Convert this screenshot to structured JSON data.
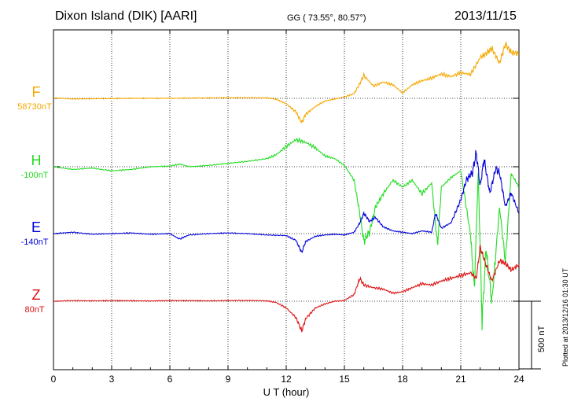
{
  "header": {
    "station": "Dixon Island (DIK)  [AARI]",
    "coords": "GG ( 73.55°,  80.57°)",
    "date": "2013/11/15"
  },
  "footer": {
    "plotted": "Plotted at 2013/12/16 01:30 UT"
  },
  "chart_data": {
    "type": "line",
    "title": "",
    "xlabel": "U T (hour)",
    "ylabel": "",
    "xlim": [
      0,
      24
    ],
    "xticks": [
      0,
      3,
      6,
      9,
      12,
      15,
      18,
      21,
      24
    ],
    "grid": true,
    "scale_bar_nT": 500,
    "scale_label": "500 nT",
    "series": [
      {
        "name": "F",
        "baseline_label": "58730nT",
        "color": "#f5a800",
        "x": [
          0,
          1,
          2,
          3,
          4,
          5,
          6,
          7,
          8,
          9,
          10,
          11,
          11.5,
          12,
          12.5,
          12.8,
          13,
          13.5,
          14,
          14.5,
          15,
          15.5,
          15.8,
          16,
          16.5,
          17,
          17.5,
          18,
          18.5,
          19,
          19.5,
          20,
          20.5,
          21,
          21.5,
          22,
          22.3,
          22.6,
          23,
          23.3,
          23.6,
          24
        ],
        "y": [
          3,
          -5,
          -3,
          -2,
          0,
          0,
          0,
          2,
          3,
          4,
          5,
          3,
          -8,
          -40,
          -100,
          -180,
          -120,
          -60,
          -20,
          -5,
          10,
          35,
          110,
          170,
          90,
          120,
          100,
          40,
          100,
          130,
          150,
          180,
          160,
          190,
          175,
          300,
          330,
          370,
          260,
          400,
          340,
          330
        ]
      },
      {
        "name": "H",
        "baseline_label": "-100nT",
        "color": "#22dd22",
        "x": [
          0,
          1,
          2,
          3,
          4,
          5,
          6,
          6.5,
          7,
          8,
          9,
          10,
          11,
          11.5,
          12,
          12.5,
          13,
          13.5,
          14,
          14.5,
          15,
          15.5,
          15.8,
          16,
          16.3,
          16.6,
          17,
          17.5,
          18,
          18.5,
          19,
          19.5,
          19.8,
          20,
          20.5,
          21,
          21.5,
          21.7,
          21.9,
          22.1,
          22.3,
          22.6,
          23,
          23.3,
          23.6,
          24
        ],
        "y": [
          0,
          -20,
          -10,
          -30,
          -20,
          0,
          5,
          20,
          0,
          10,
          25,
          40,
          60,
          90,
          150,
          200,
          180,
          140,
          80,
          60,
          10,
          -100,
          -350,
          -550,
          -480,
          -300,
          -200,
          -100,
          -150,
          -100,
          -200,
          -120,
          -580,
          -150,
          -80,
          -30,
          -500,
          -900,
          -50,
          -1150,
          -600,
          -1000,
          -300,
          -700,
          -50,
          -150
        ]
      },
      {
        "name": "E",
        "baseline_label": "-140nT",
        "color": "#0000dd",
        "x": [
          0,
          1,
          2,
          3,
          4,
          5,
          6,
          6.5,
          7,
          8,
          9,
          10,
          11,
          12,
          12.5,
          12.8,
          13,
          13.5,
          14,
          14.5,
          15,
          15.5,
          15.8,
          16,
          16.3,
          16.6,
          17,
          17.5,
          18,
          18.5,
          19,
          19.5,
          19.7,
          20,
          20.5,
          21,
          21.3,
          21.6,
          21.8,
          22,
          22.2,
          22.5,
          22.8,
          23,
          23.3,
          23.6,
          24
        ],
        "y": [
          0,
          10,
          -5,
          0,
          5,
          -5,
          0,
          -40,
          -10,
          0,
          5,
          0,
          -10,
          -15,
          -50,
          -140,
          -60,
          -20,
          -10,
          -5,
          -10,
          10,
          80,
          150,
          90,
          120,
          50,
          20,
          10,
          0,
          20,
          10,
          150,
          40,
          80,
          250,
          400,
          450,
          600,
          350,
          550,
          300,
          480,
          450,
          200,
          300,
          150
        ]
      },
      {
        "name": "Z",
        "baseline_label": "80nT",
        "color": "#dd1111",
        "x": [
          0,
          1,
          2,
          3,
          4,
          5,
          6,
          7,
          8,
          9,
          10,
          11,
          11.5,
          12,
          12.5,
          12.8,
          13,
          13.5,
          14,
          14.5,
          15,
          15.5,
          15.8,
          16,
          16.5,
          17,
          17.5,
          18,
          18.5,
          19,
          19.5,
          20,
          20.5,
          21,
          21.5,
          21.8,
          22,
          22.3,
          22.6,
          23,
          23.3,
          23.6,
          24
        ],
        "y": [
          0,
          5,
          3,
          5,
          4,
          2,
          5,
          5,
          3,
          5,
          6,
          3,
          -10,
          -50,
          -120,
          -220,
          -130,
          -50,
          -20,
          0,
          5,
          50,
          170,
          120,
          100,
          90,
          60,
          70,
          100,
          130,
          120,
          150,
          170,
          190,
          210,
          170,
          400,
          270,
          150,
          300,
          280,
          230,
          270
        ]
      }
    ]
  }
}
